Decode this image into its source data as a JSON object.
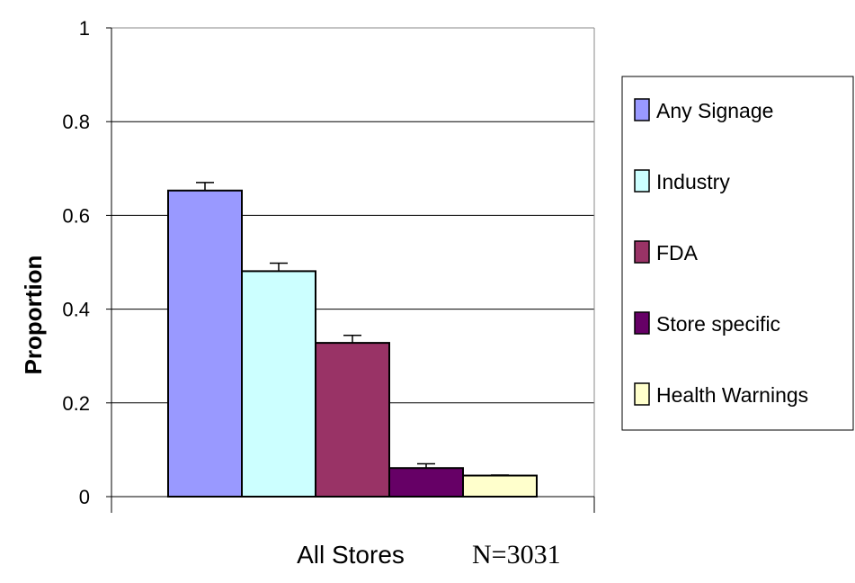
{
  "chart_data": {
    "type": "bar",
    "title": "",
    "ylabel": "Proportion",
    "xlabel": "All Stores",
    "note": "N=3031",
    "ylim": [
      0,
      1
    ],
    "yticks": [
      0,
      0.2,
      0.4,
      0.6,
      0.8,
      1
    ],
    "ytick_labels": [
      "0",
      "0.2",
      "0.4",
      "0.6",
      "0.8",
      "1"
    ],
    "grid": true,
    "legend_position": "right",
    "categories": [
      "All Stores"
    ],
    "series": [
      {
        "name": "Any Signage",
        "values": [
          0.653
        ],
        "error": [
          0.017
        ],
        "color": "#9999ff"
      },
      {
        "name": "Industry",
        "values": [
          0.481
        ],
        "error": [
          0.017
        ],
        "color": "#ccffff"
      },
      {
        "name": "FDA",
        "values": [
          0.328
        ],
        "error": [
          0.016
        ],
        "color": "#993366"
      },
      {
        "name": "Store specific",
        "values": [
          0.061
        ],
        "error": [
          0.009
        ],
        "color": "#660066"
      },
      {
        "name": "Health Warnings",
        "values": [
          0.045
        ],
        "error": [
          0.001
        ],
        "color": "#ffffcc"
      }
    ]
  }
}
